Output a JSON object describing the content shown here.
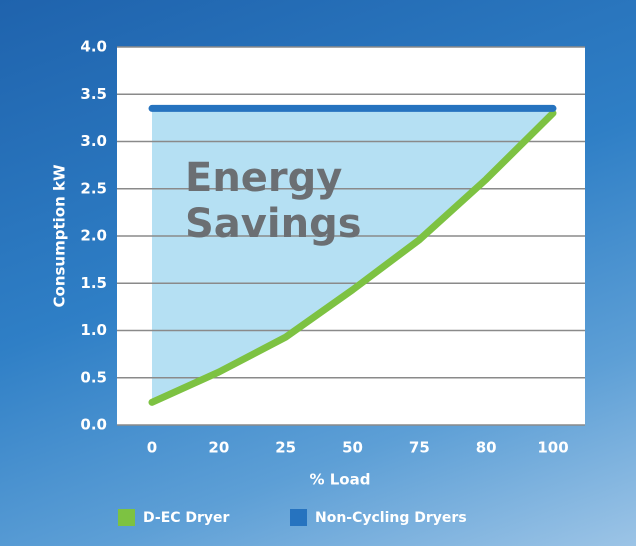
{
  "chart_data": {
    "type": "line",
    "categories": [
      "0",
      "20",
      "25",
      "50",
      "75",
      "80",
      "100"
    ],
    "series": [
      {
        "name": "D-EC Dryer",
        "color": "#7dc242",
        "values": [
          0.24,
          0.56,
          0.93,
          1.43,
          1.96,
          2.6,
          3.3
        ]
      },
      {
        "name": "Non-Cycling Dryers",
        "color": "#2673bf",
        "values": [
          3.35,
          3.35,
          3.35,
          3.35,
          3.35,
          3.35,
          3.35
        ]
      }
    ],
    "ylim": [
      0,
      4
    ],
    "yticks": [
      {
        "value": 0,
        "label": "0.0"
      },
      {
        "value": 0.5,
        "label": "0.5"
      },
      {
        "value": 1,
        "label": "1.0"
      },
      {
        "value": 1.5,
        "label": "1.5"
      },
      {
        "value": 2,
        "label": "2.0"
      },
      {
        "value": 2.5,
        "label": "2.5"
      },
      {
        "value": 3,
        "label": "3.0"
      },
      {
        "value": 3.5,
        "label": "3.5"
      },
      {
        "value": 4,
        "label": "4.0"
      }
    ],
    "xlabel": "% Load",
    "ylabel": "Consumption kW",
    "annotation": "Energy Savings",
    "area_color": "#b5e0f3",
    "grid": true,
    "legend": "bottom"
  }
}
